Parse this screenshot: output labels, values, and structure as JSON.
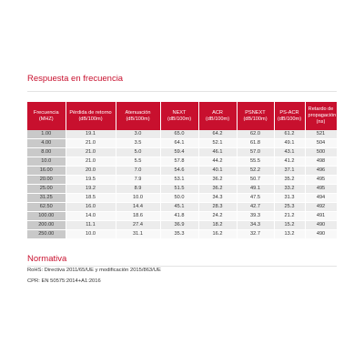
{
  "title": "Respuesta en frecuencia",
  "table": {
    "headers": [
      "Frecuencia (MHZ)",
      "Pérdida de retorno (dB/100m)",
      "Atenuación (dB/100m)",
      "NEXT (dB/100m)",
      "ACR (dB/100m)",
      "PSNEXT (dB/100m)",
      "PS-ACR (dB/100m)",
      "Retardo de propagación (ns)"
    ],
    "rows": [
      [
        "1.00",
        "19.1",
        "3.0",
        "65.0",
        "64.2",
        "62.0",
        "61.2",
        "521"
      ],
      [
        "4.00",
        "21.0",
        "3.5",
        "64.1",
        "52.1",
        "61.8",
        "49.1",
        "504"
      ],
      [
        "8.00",
        "21.0",
        "5.0",
        "59.4",
        "46.1",
        "57.0",
        "43.1",
        "500"
      ],
      [
        "10.0",
        "21.0",
        "5.5",
        "57.8",
        "44.2",
        "55.5",
        "41.2",
        "498"
      ],
      [
        "16.00",
        "20.0",
        "7.0",
        "54.6",
        "40.1",
        "52.2",
        "37.1",
        "496"
      ],
      [
        "20.00",
        "19.5",
        "7.9",
        "53.1",
        "36.2",
        "50.7",
        "35.2",
        "495"
      ],
      [
        "25.00",
        "19.2",
        "8.9",
        "51.5",
        "36.2",
        "49.1",
        "33.2",
        "495"
      ],
      [
        "31.25",
        "18.5",
        "10.0",
        "50.0",
        "34.3",
        "47.5",
        "31.3",
        "494"
      ],
      [
        "62.50",
        "16.0",
        "14.4",
        "45.1",
        "28.3",
        "42.7",
        "25.3",
        "492"
      ],
      [
        "100.00",
        "14.0",
        "18.6",
        "41.8",
        "24.2",
        "39.3",
        "21.2",
        "491"
      ],
      [
        "200.00",
        "11.1",
        "27.4",
        "36.9",
        "18.2",
        "34.3",
        "15.2",
        "490"
      ],
      [
        "250.00",
        "10.0",
        "31.1",
        "35.3",
        "16.2",
        "32.7",
        "13.2",
        "490"
      ]
    ]
  },
  "normativa": {
    "title": "Normativa",
    "lines": [
      "RoHS: Directiva 2011/65/UE y modificación 2015/863/UE",
      "CPR: EN 50575:2014+A1:2016"
    ]
  }
}
